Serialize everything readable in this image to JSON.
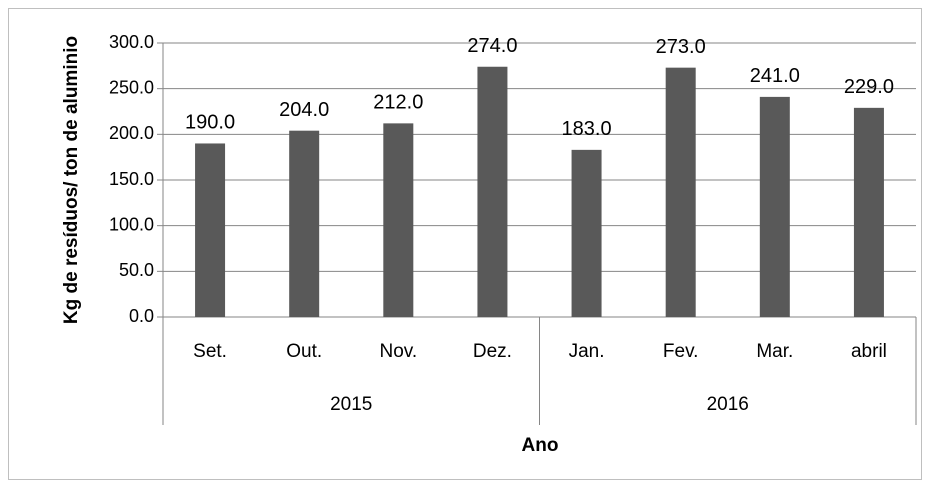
{
  "chart_data": {
    "type": "bar",
    "y_label": "Kg de resíduos/ ton  de aluminio",
    "x_label": "Ano",
    "groups": [
      {
        "label": "2015",
        "categories": [
          "Set.",
          "Out.",
          "Nov.",
          "Dez."
        ],
        "values": [
          190,
          204,
          212,
          274
        ],
        "value_labels": [
          "190.0",
          "204.0",
          "212.0",
          "274.0"
        ]
      },
      {
        "label": "2016",
        "categories": [
          "Jan.",
          "Fev.",
          "Mar.",
          "abril"
        ],
        "values": [
          183,
          273,
          241,
          229
        ],
        "value_labels": [
          "183.0",
          "273.0",
          "241.0",
          "229.0"
        ]
      }
    ],
    "color": "#595959",
    "ylim": [
      0,
      300
    ],
    "yticks": [
      {
        "value": 0,
        "label": "0.0"
      },
      {
        "value": 50,
        "label": "50.0"
      },
      {
        "value": 100,
        "label": "100.0"
      },
      {
        "value": 150,
        "label": "150.0"
      },
      {
        "value": 200,
        "label": "200.0"
      },
      {
        "value": 250,
        "label": "250.0"
      },
      {
        "value": 300,
        "label": "300.0"
      }
    ],
    "grid": true
  }
}
